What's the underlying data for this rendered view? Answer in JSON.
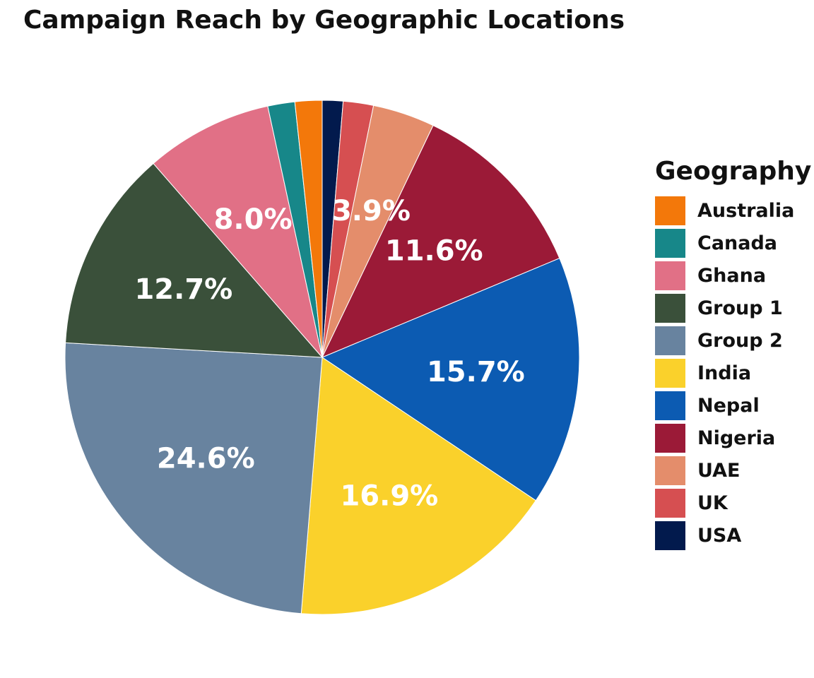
{
  "chart_data": {
    "type": "pie",
    "title": "Campaign Reach by Geographic Locations",
    "legend_title": "Geography",
    "legend_position": "right",
    "start": "12 o'clock",
    "direction": "clockwise",
    "slices": [
      {
        "name": "USA",
        "value": 1.3,
        "color": "#021a4d"
      },
      {
        "name": "UK",
        "value": 1.9,
        "color": "#d64f51"
      },
      {
        "name": "UAE",
        "value": 3.9,
        "color": "#e48d6b",
        "label": "3.9%"
      },
      {
        "name": "Nigeria",
        "value": 11.6,
        "color": "#9b1a37",
        "label": "11.6%"
      },
      {
        "name": "Nepal",
        "value": 15.7,
        "color": "#0c5bb2",
        "label": "15.7%"
      },
      {
        "name": "India",
        "value": 16.9,
        "color": "#fad12b",
        "label": "16.9%"
      },
      {
        "name": "Group 2",
        "value": 24.6,
        "color": "#68839f",
        "label": "24.6%"
      },
      {
        "name": "Group 1",
        "value": 12.7,
        "color": "#3a503a",
        "label": "12.7%"
      },
      {
        "name": "Ghana",
        "value": 8.0,
        "color": "#e17086",
        "label": "8.0%"
      },
      {
        "name": "Canada",
        "value": 1.7,
        "color": "#178789"
      },
      {
        "name": "Australia",
        "value": 1.7,
        "color": "#f3780a"
      }
    ],
    "legend_order": [
      "Australia",
      "Canada",
      "Ghana",
      "Group 1",
      "Group 2",
      "India",
      "Nepal",
      "Nigeria",
      "UAE",
      "UK",
      "USA"
    ]
  }
}
